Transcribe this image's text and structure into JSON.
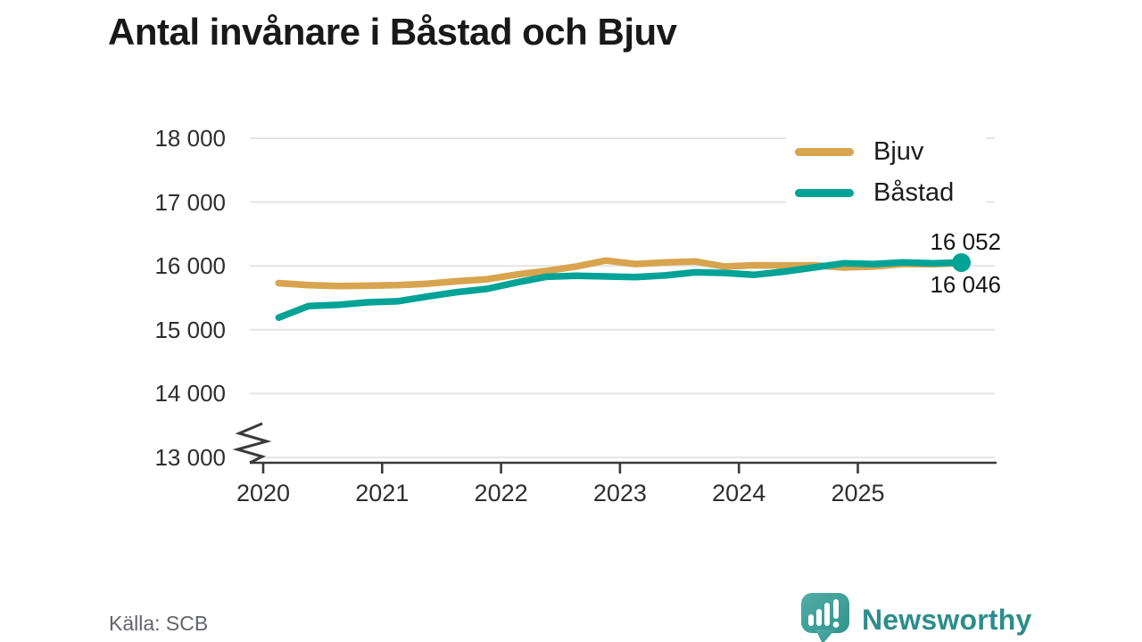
{
  "title": "Antal invånare i Båstad och Bjuv",
  "source": "Källa: SCB",
  "branding": {
    "name": "Newsworthy",
    "brand_color": "#2d8d8a",
    "icon_color_1": "#52ada6",
    "icon_color_2": "#2f948d"
  },
  "colors": {
    "grid": "#e4e4e4",
    "axis": "#3a3a3a",
    "text": "#2e2e2e",
    "muted": "#63636d"
  },
  "legend": {
    "items": [
      {
        "label": "Bjuv",
        "color": "#d8a44e"
      },
      {
        "label": "Båstad",
        "color": "#00a396"
      }
    ]
  },
  "annotations": {
    "end_label_top": "16 052",
    "end_label_bottom": "16 046"
  },
  "chart_data": {
    "type": "line",
    "title": "Antal invånare i Båstad och Bjuv",
    "xlabel": "",
    "ylabel": "",
    "x": [
      2020.13,
      2020.38,
      2020.63,
      2020.88,
      2021.13,
      2021.38,
      2021.63,
      2021.88,
      2022.13,
      2022.38,
      2022.63,
      2022.88,
      2023.13,
      2023.38,
      2023.63,
      2023.88,
      2024.13,
      2024.38,
      2024.63,
      2024.88,
      2025.13,
      2025.38,
      2025.63,
      2025.87
    ],
    "series": [
      {
        "name": "Bjuv",
        "color": "#d8a44e",
        "end_label": "16 046",
        "end_value": 16046,
        "end_dot": false,
        "values": [
          15730,
          15700,
          15685,
          15690,
          15700,
          15720,
          15760,
          15790,
          15865,
          15920,
          15990,
          16084,
          16030,
          16055,
          16070,
          15990,
          16010,
          16005,
          16010,
          15975,
          15990,
          16030,
          16025,
          16046
        ]
      },
      {
        "name": "Båstad",
        "color": "#00a396",
        "end_label": "16 052",
        "end_value": 16052,
        "end_dot": true,
        "values": [
          15190,
          15370,
          15390,
          15430,
          15445,
          15520,
          15590,
          15640,
          15740,
          15830,
          15845,
          15835,
          15825,
          15850,
          15900,
          15890,
          15860,
          15910,
          15975,
          16040,
          16030,
          16055,
          16040,
          16052
        ]
      }
    ],
    "y_ticks": [
      {
        "value": 13000,
        "label": "13 000"
      },
      {
        "value": 14000,
        "label": "14 000"
      },
      {
        "value": 15000,
        "label": "15 000"
      },
      {
        "value": 16000,
        "label": "16 000"
      },
      {
        "value": 17000,
        "label": "17 000"
      },
      {
        "value": 18000,
        "label": "18 000"
      }
    ],
    "x_ticks": [
      {
        "value": 2020,
        "label": "2020"
      },
      {
        "value": 2021,
        "label": "2021"
      },
      {
        "value": 2022,
        "label": "2022"
      },
      {
        "value": 2023,
        "label": "2023"
      },
      {
        "value": 2024,
        "label": "2024"
      },
      {
        "value": 2025,
        "label": "2025"
      }
    ],
    "ylim": [
      13000,
      18000
    ],
    "xlim": [
      2020,
      2026
    ],
    "axis_break": true,
    "grid": true,
    "legend_position": "top-right"
  }
}
